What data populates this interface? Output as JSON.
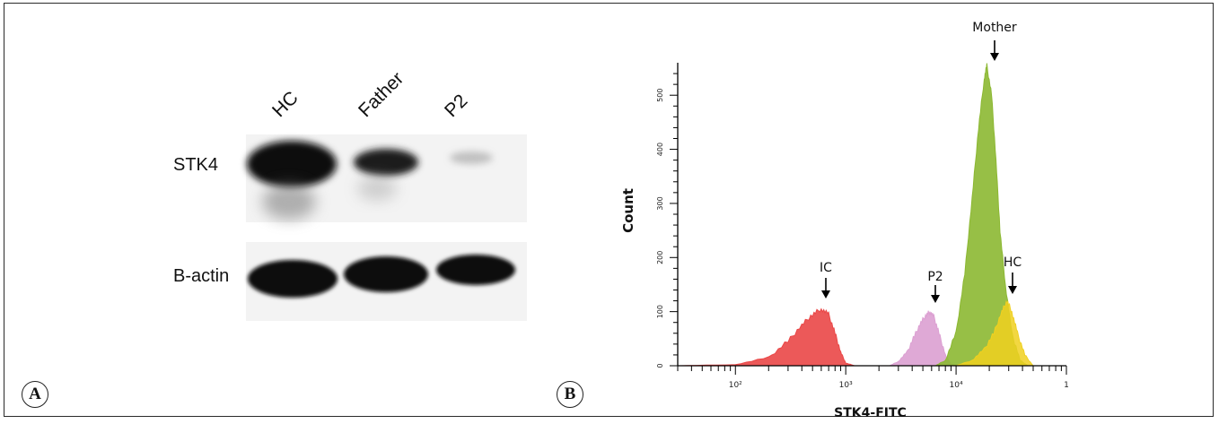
{
  "panel_a": {
    "label": "A",
    "lanes": [
      "HC",
      "Father",
      "P2"
    ],
    "rows": [
      "STK4",
      "B-actin"
    ]
  },
  "panel_b": {
    "label": "B",
    "xlabel": "STK4-FITC",
    "ylabel": "Count",
    "annotations": [
      "Mother",
      "IC",
      "P2",
      "HC"
    ]
  },
  "chart_data": {
    "type": "area",
    "title": "",
    "xlabel": "STK4-FITC",
    "ylabel": "Count",
    "x_scale": "log",
    "xlim": [
      30,
      100000
    ],
    "ylim": [
      0,
      560
    ],
    "x_ticks": [
      "10²",
      "10³",
      "10⁴",
      "1"
    ],
    "y_ticks": [
      "0",
      "100",
      "200",
      "300",
      "400",
      "500"
    ],
    "series": [
      {
        "name": "IC",
        "color": "#ea4747",
        "peak_x": 600,
        "peak_y": 105,
        "points": [
          [
            30,
            0
          ],
          [
            100,
            2
          ],
          [
            200,
            15
          ],
          [
            300,
            45
          ],
          [
            400,
            75
          ],
          [
            500,
            95
          ],
          [
            600,
            105
          ],
          [
            700,
            95
          ],
          [
            800,
            60
          ],
          [
            900,
            25
          ],
          [
            1000,
            5
          ],
          [
            1200,
            0
          ]
        ]
      },
      {
        "name": "P2",
        "color": "#dca0d2",
        "peak_x": 5800,
        "peak_y": 100,
        "points": [
          [
            2500,
            0
          ],
          [
            3000,
            8
          ],
          [
            3600,
            25
          ],
          [
            4200,
            55
          ],
          [
            4800,
            80
          ],
          [
            5400,
            95
          ],
          [
            5800,
            100
          ],
          [
            6300,
            90
          ],
          [
            7000,
            60
          ],
          [
            8000,
            20
          ],
          [
            9000,
            3
          ],
          [
            10000,
            0
          ]
        ]
      },
      {
        "name": "Mother",
        "color": "#8cb832",
        "peak_x": 19000,
        "peak_y": 555,
        "points": [
          [
            6500,
            0
          ],
          [
            8000,
            10
          ],
          [
            10000,
            60
          ],
          [
            12000,
            170
          ],
          [
            14000,
            310
          ],
          [
            16000,
            440
          ],
          [
            18000,
            530
          ],
          [
            19000,
            555
          ],
          [
            21000,
            500
          ],
          [
            23000,
            380
          ],
          [
            25000,
            250
          ],
          [
            28000,
            150
          ],
          [
            32000,
            60
          ],
          [
            38000,
            10
          ],
          [
            45000,
            0
          ]
        ]
      },
      {
        "name": "HC",
        "color": "#f0d020",
        "peak_x": 29000,
        "peak_y": 120,
        "points": [
          [
            10000,
            0
          ],
          [
            14000,
            10
          ],
          [
            18000,
            30
          ],
          [
            22000,
            60
          ],
          [
            26000,
            100
          ],
          [
            29000,
            120
          ],
          [
            32000,
            100
          ],
          [
            36000,
            60
          ],
          [
            42000,
            20
          ],
          [
            50000,
            0
          ]
        ]
      }
    ]
  }
}
